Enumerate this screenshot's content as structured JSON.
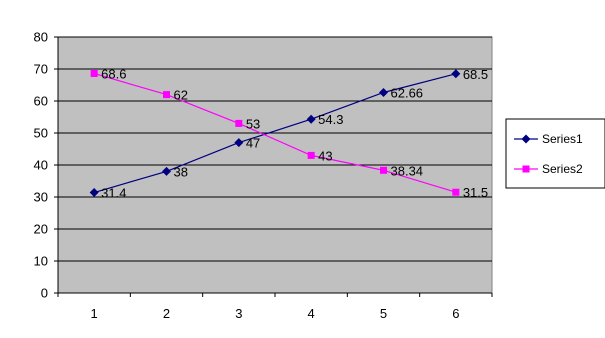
{
  "chart_data": {
    "type": "line",
    "title": "",
    "xlabel": "",
    "ylabel": "",
    "categories": [
      "1",
      "2",
      "3",
      "4",
      "5",
      "6"
    ],
    "ylim": [
      0,
      80
    ],
    "yticks": [
      "0",
      "10",
      "20",
      "30",
      "40",
      "50",
      "60",
      "70",
      "80"
    ],
    "grid": true,
    "plot_background": "#c0c0c0",
    "legend_position": "right",
    "series": [
      {
        "name": "Series1",
        "values": [
          31.4,
          38,
          47,
          54.3,
          62.66,
          68.5
        ],
        "labels": [
          "31.4",
          "38",
          "47",
          "54.3",
          "62.66",
          "68.5"
        ],
        "color": "#000080",
        "marker": "diamond"
      },
      {
        "name": "Series2",
        "values": [
          68.6,
          62,
          53,
          43,
          38.34,
          31.5
        ],
        "labels": [
          "68.6",
          "62",
          "53",
          "43",
          "38.34",
          "31.5"
        ],
        "color": "#ff00ff",
        "marker": "square"
      }
    ]
  }
}
